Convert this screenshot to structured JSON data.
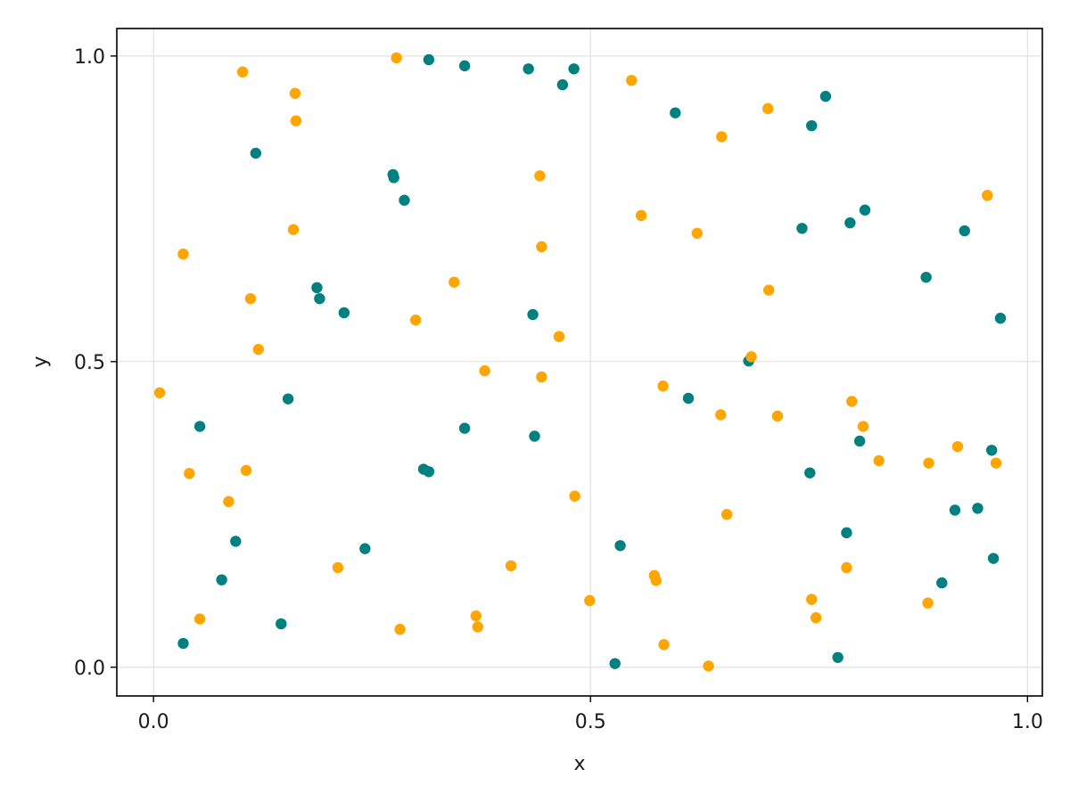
{
  "chart_data": {
    "type": "scatter",
    "xlabel": "x",
    "ylabel": "y",
    "xlim": [
      -0.042,
      1.017
    ],
    "ylim": [
      -0.047,
      1.045
    ],
    "xticks": [
      0.0,
      0.5,
      1.0
    ],
    "xtick_labels": [
      "0.0",
      "0.5",
      "1.0"
    ],
    "yticks": [
      0.0,
      0.5,
      1.0
    ],
    "ytick_labels": [
      "0.0",
      "0.5",
      "1.0"
    ],
    "grid": true,
    "series": [
      {
        "color": "#008080",
        "points": [
          [
            0.315,
            0.994
          ],
          [
            0.356,
            0.984
          ],
          [
            0.429,
            0.979
          ],
          [
            0.481,
            0.979
          ],
          [
            0.468,
            0.953
          ],
          [
            0.597,
            0.907
          ],
          [
            0.769,
            0.934
          ],
          [
            0.753,
            0.886
          ],
          [
            0.117,
            0.841
          ],
          [
            0.274,
            0.806
          ],
          [
            0.275,
            0.801
          ],
          [
            0.287,
            0.764
          ],
          [
            0.742,
            0.718
          ],
          [
            0.797,
            0.727
          ],
          [
            0.814,
            0.748
          ],
          [
            0.928,
            0.714
          ],
          [
            0.884,
            0.638
          ],
          [
            0.187,
            0.621
          ],
          [
            0.19,
            0.603
          ],
          [
            0.218,
            0.58
          ],
          [
            0.434,
            0.577
          ],
          [
            0.969,
            0.571
          ],
          [
            0.681,
            0.501
          ],
          [
            0.612,
            0.44
          ],
          [
            0.154,
            0.439
          ],
          [
            0.053,
            0.394
          ],
          [
            0.356,
            0.391
          ],
          [
            0.436,
            0.378
          ],
          [
            0.808,
            0.37
          ],
          [
            0.959,
            0.355
          ],
          [
            0.309,
            0.324
          ],
          [
            0.315,
            0.32
          ],
          [
            0.751,
            0.318
          ],
          [
            0.917,
            0.257
          ],
          [
            0.943,
            0.26
          ],
          [
            0.094,
            0.206
          ],
          [
            0.242,
            0.194
          ],
          [
            0.534,
            0.199
          ],
          [
            0.793,
            0.22
          ],
          [
            0.961,
            0.178
          ],
          [
            0.078,
            0.143
          ],
          [
            0.902,
            0.138
          ],
          [
            0.146,
            0.071
          ],
          [
            0.034,
            0.039
          ],
          [
            0.528,
            0.006
          ],
          [
            0.783,
            0.016
          ]
        ]
      },
      {
        "color": "#ffa500",
        "points": [
          [
            0.278,
            0.997
          ],
          [
            0.102,
            0.974
          ],
          [
            0.162,
            0.939
          ],
          [
            0.163,
            0.894
          ],
          [
            0.547,
            0.96
          ],
          [
            0.703,
            0.914
          ],
          [
            0.65,
            0.868
          ],
          [
            0.442,
            0.804
          ],
          [
            0.558,
            0.739
          ],
          [
            0.16,
            0.716
          ],
          [
            0.622,
            0.71
          ],
          [
            0.034,
            0.676
          ],
          [
            0.444,
            0.688
          ],
          [
            0.344,
            0.63
          ],
          [
            0.704,
            0.617
          ],
          [
            0.111,
            0.603
          ],
          [
            0.3,
            0.568
          ],
          [
            0.464,
            0.541
          ],
          [
            0.12,
            0.52
          ],
          [
            0.954,
            0.772
          ],
          [
            0.007,
            0.449
          ],
          [
            0.379,
            0.485
          ],
          [
            0.444,
            0.475
          ],
          [
            0.684,
            0.508
          ],
          [
            0.583,
            0.46
          ],
          [
            0.649,
            0.413
          ],
          [
            0.714,
            0.411
          ],
          [
            0.799,
            0.435
          ],
          [
            0.812,
            0.394
          ],
          [
            0.83,
            0.338
          ],
          [
            0.887,
            0.334
          ],
          [
            0.92,
            0.361
          ],
          [
            0.964,
            0.334
          ],
          [
            0.041,
            0.317
          ],
          [
            0.106,
            0.322
          ],
          [
            0.086,
            0.271
          ],
          [
            0.482,
            0.28
          ],
          [
            0.656,
            0.25
          ],
          [
            0.211,
            0.163
          ],
          [
            0.409,
            0.166
          ],
          [
            0.573,
            0.15
          ],
          [
            0.575,
            0.142
          ],
          [
            0.793,
            0.163
          ],
          [
            0.753,
            0.111
          ],
          [
            0.499,
            0.109
          ],
          [
            0.886,
            0.105
          ],
          [
            0.053,
            0.079
          ],
          [
            0.369,
            0.084
          ],
          [
            0.371,
            0.066
          ],
          [
            0.282,
            0.062
          ],
          [
            0.758,
            0.081
          ],
          [
            0.584,
            0.037
          ],
          [
            0.635,
            0.002
          ]
        ]
      }
    ]
  }
}
